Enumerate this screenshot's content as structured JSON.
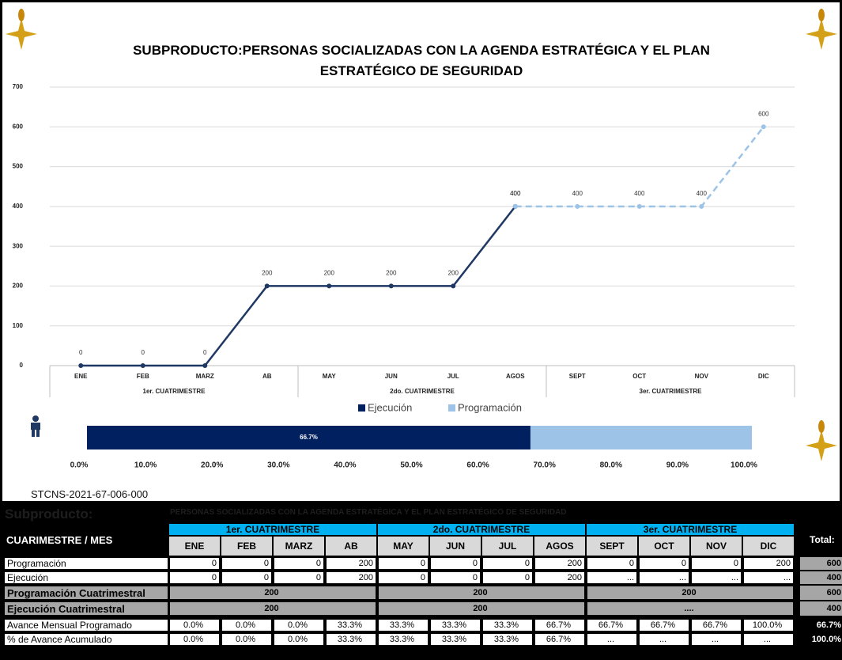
{
  "chart_data": [
    {
      "type": "line",
      "title": "SUBPRODUCTO:PERSONAS SOCIALIZADAS CON LA AGENDA ESTRATÉGICA  Y EL PLAN ESTRATÉGICO DE SEGURIDAD",
      "categories": [
        "ENE",
        "FEB",
        "MARZ",
        "AB",
        "MAY",
        "JUN",
        "JUL",
        "AGOS",
        "SEPT",
        "OCT",
        "NOV",
        "DIC"
      ],
      "groups": [
        "1er. CUATRIMESTRE",
        "2do. CUATRIMESTRE",
        "3er. CUATRIMESTRE"
      ],
      "series": [
        {
          "name": "Ejecución",
          "color": "#1f3864",
          "legend_color": "#002060",
          "dashed": false,
          "values": [
            0,
            0,
            0,
            200,
            200,
            200,
            200,
            400,
            null,
            null,
            null,
            null
          ]
        },
        {
          "name": "Programación",
          "color": "#9dc3e6",
          "legend_color": "#9dc3e6",
          "dashed": true,
          "values": [
            null,
            null,
            null,
            null,
            null,
            null,
            null,
            400,
            400,
            400,
            400,
            600
          ]
        }
      ],
      "ylim": [
        0,
        700
      ],
      "yticks": [
        0,
        100,
        200,
        300,
        400,
        500,
        600,
        700
      ],
      "grid": true,
      "legend": "bottom"
    },
    {
      "type": "progress",
      "xlim": [
        0,
        100
      ],
      "xticks": [
        {
          "value": 0,
          "label": "0.0%"
        },
        {
          "value": 10,
          "label": "10.0%"
        },
        {
          "value": 20,
          "label": "20.0%"
        },
        {
          "value": 30,
          "label": "30.0%"
        },
        {
          "value": 40,
          "label": "40.0%"
        },
        {
          "value": 50,
          "label": "50.0%"
        },
        {
          "value": 60,
          "label": "60.0%"
        },
        {
          "value": 70,
          "label": "70.0%"
        },
        {
          "value": 80,
          "label": "80.0%"
        },
        {
          "value": 90,
          "label": "90.0%"
        },
        {
          "value": 100,
          "label": "100.0%"
        }
      ],
      "series": [
        {
          "color": "#002060",
          "values": [
            66.7
          ],
          "value_labels": [
            "66.7%"
          ]
        },
        {
          "color": "#9dc3e6",
          "values": [
            33.3
          ]
        }
      ]
    }
  ],
  "code": "STCNS-2021-67-006-000",
  "table": {
    "subproducto_label": "Subproducto:",
    "subproducto": "PERSONAS SOCIALIZADAS CON LA AGENDA ESTRATÉGICA  Y EL PLAN ESTRATÉGICO DE SEGURIDAD",
    "corner": "CUARIMESTRE / MES",
    "groups": [
      "1er. CUATRIMESTRE",
      "2do. CUATRIMESTRE",
      "3er. CUATRIMESTRE"
    ],
    "months": [
      "ENE",
      "FEB",
      "MARZ",
      "AB",
      "MAY",
      "JUN",
      "JUL",
      "AGOS",
      "SEPT",
      "OCT",
      "NOV",
      "DIC"
    ],
    "total_header": "Total:",
    "rows": [
      {
        "label": "Programación",
        "cells": [
          "0",
          "0",
          "0",
          "200",
          "0",
          "0",
          "0",
          "200",
          "0",
          "0",
          "0",
          "200"
        ],
        "total": "600"
      },
      {
        "label": "Ejecución",
        "cells": [
          "0",
          "0",
          "0",
          "200",
          "0",
          "0",
          "0",
          "200",
          "...",
          "...",
          "...",
          "..."
        ],
        "total": "400"
      },
      {
        "label": "Programación Cuatrimestral",
        "cells": [
          "200",
          "200",
          "200"
        ],
        "total": "600"
      },
      {
        "label": "Ejecución Cuatrimestral",
        "cells": [
          "200",
          "200",
          "...."
        ],
        "total": "400"
      },
      {
        "label": "Avance Mensual Programado",
        "cells": [
          "0.0%",
          "0.0%",
          "0.0%",
          "33.3%",
          "33.3%",
          "33.3%",
          "33.3%",
          "66.7%",
          "66.7%",
          "66.7%",
          "66.7%",
          "100.0%"
        ],
        "total": "66.7%"
      },
      {
        "label": "% de Avance Acumulado",
        "cells": [
          "0.0%",
          "0.0%",
          "0.0%",
          "33.3%",
          "33.3%",
          "33.3%",
          "33.3%",
          "66.7%",
          "...",
          "...",
          "...",
          "..."
        ],
        "total": "100.0%"
      }
    ]
  }
}
